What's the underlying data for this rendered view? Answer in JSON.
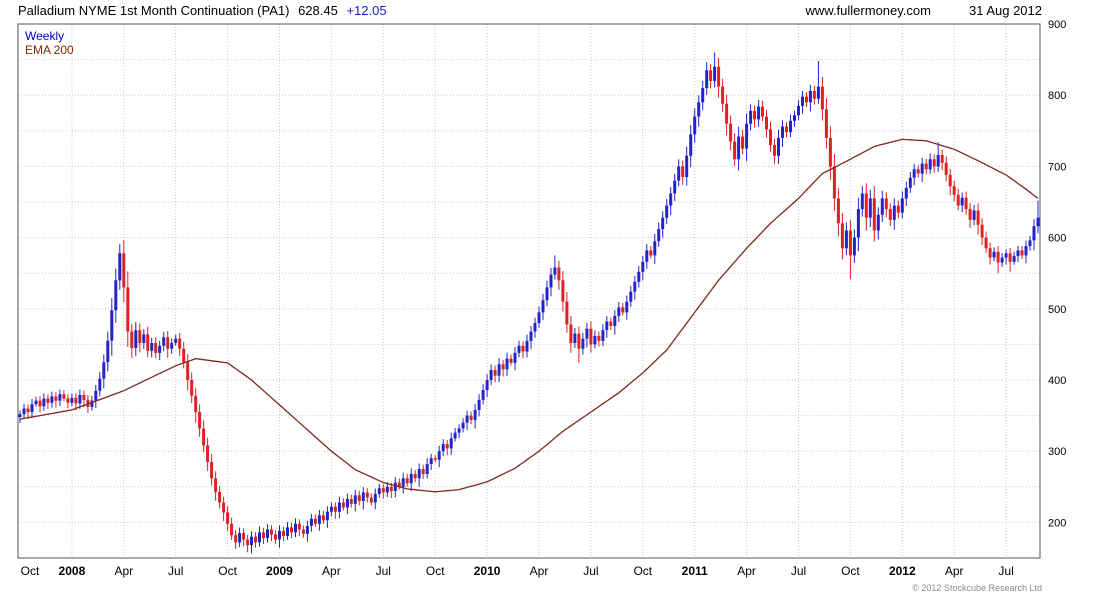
{
  "header": {
    "title": "Palladium NYME 1st Month Continuation (PA1)",
    "price": "628.45",
    "change": "+12.05",
    "website": "www.fullermoney.com",
    "date": "31 Aug 2012"
  },
  "legend": {
    "timeframe": "Weekly",
    "indicator": "EMA 200"
  },
  "footer": {
    "copyright": "© 2012 Stockcube Research Ltd"
  },
  "colors": {
    "up": "#2323cc",
    "down": "#dd2222",
    "ema": "#7a2a1e",
    "grid": "#c9c9c9",
    "border": "#555555",
    "axis_text": "#000000",
    "legend_weekly": "#0000cc",
    "legend_ema": "#8b2500",
    "change_text": "#1a1acd"
  },
  "chart_data": {
    "type": "candlestick",
    "timeframe": "weekly",
    "title": "Palladium NYME 1st Month Continuation (PA1)",
    "last_price": 628.45,
    "last_change": 12.05,
    "y_axis": {
      "min": 150,
      "max": 900,
      "tick_labels": [
        900,
        800,
        700,
        600,
        500,
        400,
        300,
        200
      ],
      "minor_step": 50,
      "side": "right"
    },
    "x_ticks": [
      {
        "week": 0,
        "label": "Oct"
      },
      {
        "week": 13,
        "label": "2008"
      },
      {
        "week": 26,
        "label": "Apr"
      },
      {
        "week": 39,
        "label": "Jul"
      },
      {
        "week": 52,
        "label": "Oct"
      },
      {
        "week": 65,
        "label": "2009"
      },
      {
        "week": 78,
        "label": "Apr"
      },
      {
        "week": 91,
        "label": "Jul"
      },
      {
        "week": 104,
        "label": "Oct"
      },
      {
        "week": 117,
        "label": "2010"
      },
      {
        "week": 130,
        "label": "Apr"
      },
      {
        "week": 143,
        "label": "Jul"
      },
      {
        "week": 156,
        "label": "Oct"
      },
      {
        "week": 169,
        "label": "2011"
      },
      {
        "week": 182,
        "label": "Apr"
      },
      {
        "week": 195,
        "label": "Jul"
      },
      {
        "week": 208,
        "label": "Oct"
      },
      {
        "week": 221,
        "label": "2012"
      },
      {
        "week": 234,
        "label": "Apr"
      },
      {
        "week": 247,
        "label": "Jul"
      }
    ],
    "first_open": 348,
    "closes": [
      352,
      360,
      355,
      366,
      371,
      363,
      374,
      368,
      377,
      371,
      380,
      374,
      368,
      375,
      367,
      379,
      372,
      362,
      371,
      385,
      402,
      425,
      455,
      498,
      540,
      578,
      530,
      468,
      445,
      470,
      452,
      464,
      441,
      452,
      438,
      448,
      460,
      444,
      452,
      458,
      444,
      425,
      400,
      378,
      355,
      332,
      308,
      285,
      262,
      243,
      228,
      214,
      198,
      182,
      172,
      185,
      176,
      168,
      180,
      172,
      186,
      178,
      190,
      183,
      176,
      188,
      181,
      193,
      186,
      198,
      190,
      184,
      195,
      205,
      198,
      210,
      203,
      215,
      222,
      215,
      228,
      221,
      233,
      226,
      238,
      230,
      242,
      235,
      228,
      240,
      248,
      242,
      250,
      244,
      256,
      250,
      262,
      255,
      268,
      262,
      275,
      268,
      282,
      290,
      288,
      300,
      310,
      304,
      318,
      326,
      332,
      340,
      350,
      344,
      358,
      372,
      386,
      400,
      414,
      406,
      422,
      415,
      430,
      424,
      438,
      448,
      440,
      455,
      468,
      480,
      495,
      512,
      530,
      548,
      558,
      540,
      510,
      478,
      452,
      465,
      444,
      458,
      472,
      450,
      462,
      455,
      470,
      482,
      476,
      490,
      502,
      495,
      510,
      524,
      538,
      552,
      566,
      582,
      575,
      595,
      612,
      628,
      645,
      662,
      680,
      700,
      685,
      715,
      745,
      770,
      790,
      810,
      835,
      820,
      840,
      812,
      788,
      760,
      735,
      710,
      742,
      725,
      760,
      778,
      766,
      784,
      770,
      752,
      730,
      715,
      740,
      756,
      748,
      764,
      772,
      785,
      798,
      790,
      806,
      795,
      812,
      780,
      740,
      700,
      655,
      620,
      585,
      610,
      575,
      600,
      640,
      662,
      628,
      655,
      610,
      632,
      655,
      640,
      625,
      645,
      635,
      655,
      670,
      684,
      696,
      690,
      704,
      696,
      710,
      700,
      716,
      705,
      688,
      672,
      660,
      645,
      656,
      640,
      625,
      638,
      618,
      600,
      585,
      572,
      580,
      565,
      572,
      578,
      566,
      574,
      582,
      575,
      588,
      596,
      616,
      628
    ],
    "wick_overrides": {
      "25": {
        "high": 591
      },
      "57": {
        "low": 158
      },
      "134": {
        "high": 575
      },
      "140": {
        "low": 424
      },
      "174": {
        "high": 860
      },
      "200": {
        "high": 848
      },
      "208": {
        "low": 542
      },
      "230": {
        "high": 734
      },
      "245": {
        "low": 550
      },
      "248": {
        "low": 552
      },
      "255": {
        "high": 652,
        "low": 606
      }
    },
    "ema200": {
      "period": 200,
      "points": [
        [
          0,
          345
        ],
        [
          13,
          358
        ],
        [
          26,
          385
        ],
        [
          39,
          420
        ],
        [
          44,
          430
        ],
        [
          52,
          424
        ],
        [
          58,
          400
        ],
        [
          65,
          365
        ],
        [
          72,
          330
        ],
        [
          78,
          300
        ],
        [
          84,
          274
        ],
        [
          91,
          256
        ],
        [
          97,
          247
        ],
        [
          104,
          243
        ],
        [
          110,
          246
        ],
        [
          117,
          257
        ],
        [
          124,
          276
        ],
        [
          130,
          300
        ],
        [
          136,
          328
        ],
        [
          143,
          355
        ],
        [
          150,
          382
        ],
        [
          156,
          410
        ],
        [
          162,
          442
        ],
        [
          169,
          495
        ],
        [
          175,
          540
        ],
        [
          182,
          585
        ],
        [
          188,
          620
        ],
        [
          195,
          655
        ],
        [
          201,
          690
        ],
        [
          208,
          710
        ],
        [
          214,
          728
        ],
        [
          221,
          738
        ],
        [
          227,
          736
        ],
        [
          234,
          724
        ],
        [
          240,
          708
        ],
        [
          247,
          688
        ],
        [
          252,
          668
        ],
        [
          255,
          655
        ]
      ]
    }
  }
}
